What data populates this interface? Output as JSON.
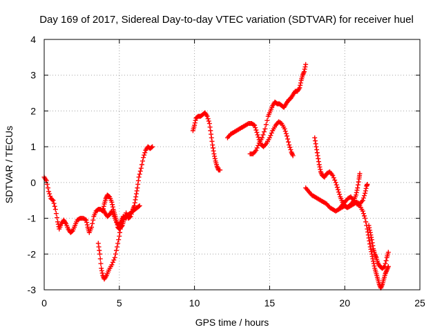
{
  "chart_data": {
    "type": "scatter",
    "title": "Day 169 of 2017, Sidereal Day-to-day VTEC variation (SDTVAR) for receiver huel",
    "xlabel": "GPS time / hours",
    "ylabel": "SDTVAR / TECUs",
    "xlim": [
      0,
      25
    ],
    "ylim": [
      -3,
      4
    ],
    "xticks": [
      "0",
      "5",
      "10",
      "15",
      "20",
      "25"
    ],
    "yticks": [
      "-3",
      "-2",
      "-1",
      "0",
      "1",
      "2",
      "3",
      "4"
    ],
    "grid": true,
    "legend": "none",
    "marker": "plus",
    "color": "#ff0000",
    "series": [
      {
        "values": [
          [
            0.0,
            0.15
          ],
          [
            0.15,
            0.05
          ],
          [
            0.3,
            -0.25
          ],
          [
            0.45,
            -0.45
          ],
          [
            0.6,
            -0.5
          ],
          [
            0.75,
            -0.75
          ],
          [
            0.9,
            -1.1
          ],
          [
            1.0,
            -1.3
          ],
          [
            1.15,
            -1.15
          ],
          [
            1.3,
            -1.05
          ],
          [
            1.45,
            -1.15
          ],
          [
            1.6,
            -1.3
          ],
          [
            1.75,
            -1.4
          ],
          [
            1.9,
            -1.35
          ],
          [
            2.05,
            -1.2
          ],
          [
            2.2,
            -1.05
          ],
          [
            2.4,
            -1.0
          ],
          [
            2.6,
            -1.0
          ],
          [
            2.8,
            -1.05
          ],
          [
            2.9,
            -1.25
          ],
          [
            3.0,
            -1.4
          ],
          [
            3.15,
            -1.25
          ],
          [
            3.3,
            -0.95
          ],
          [
            3.45,
            -0.8
          ],
          [
            3.6,
            -0.75
          ],
          [
            3.75,
            -0.75
          ],
          [
            3.9,
            -0.8
          ],
          [
            4.0,
            -0.6
          ],
          [
            4.1,
            -0.45
          ],
          [
            4.2,
            -0.35
          ],
          [
            4.35,
            -0.4
          ],
          [
            4.5,
            -0.55
          ],
          [
            4.6,
            -0.75
          ],
          [
            4.7,
            -0.9
          ],
          [
            4.8,
            -1.05
          ],
          [
            4.9,
            -1.25
          ],
          [
            5.0,
            -1.3
          ],
          [
            5.1,
            -1.25
          ],
          [
            5.2,
            -1.2
          ],
          [
            5.3,
            -1.05
          ],
          [
            5.45,
            -0.85
          ],
          [
            5.6,
            -1.0
          ],
          [
            5.75,
            -0.95
          ],
          [
            5.9,
            -0.75
          ],
          [
            6.0,
            -0.65
          ],
          [
            6.1,
            -0.4
          ],
          [
            6.2,
            -0.15
          ],
          [
            6.3,
            0.15
          ],
          [
            6.45,
            0.4
          ],
          [
            6.6,
            0.7
          ],
          [
            6.75,
            0.9
          ],
          [
            6.9,
            1.0
          ],
          [
            7.05,
            0.95
          ],
          [
            7.2,
            1.0
          ]
        ]
      },
      {
        "values": [
          [
            3.6,
            -1.7
          ],
          [
            3.7,
            -2.0
          ],
          [
            3.8,
            -2.4
          ],
          [
            3.9,
            -2.6
          ],
          [
            4.0,
            -2.7
          ],
          [
            4.15,
            -2.6
          ],
          [
            4.3,
            -2.45
          ],
          [
            4.5,
            -2.3
          ],
          [
            4.7,
            -2.1
          ],
          [
            4.85,
            -1.8
          ],
          [
            5.0,
            -1.5
          ],
          [
            5.1,
            -1.2
          ],
          [
            5.2,
            -1.05
          ],
          [
            5.3,
            -0.95
          ],
          [
            5.45,
            -1.0
          ],
          [
            5.6,
            -0.9
          ],
          [
            5.75,
            -0.85
          ],
          [
            5.9,
            -0.8
          ],
          [
            6.05,
            -0.75
          ],
          [
            6.2,
            -0.7
          ],
          [
            6.35,
            -0.65
          ]
        ]
      },
      {
        "values": [
          [
            3.9,
            -0.75
          ],
          [
            4.05,
            -0.85
          ],
          [
            4.2,
            -0.95
          ],
          [
            4.35,
            -0.9
          ],
          [
            4.5,
            -0.8
          ],
          [
            4.65,
            -0.95
          ],
          [
            4.8,
            -1.1
          ],
          [
            4.95,
            -1.2
          ],
          [
            5.1,
            -1.1
          ],
          [
            5.25,
            -0.95
          ]
        ]
      },
      {
        "values": [
          [
            9.9,
            1.45
          ],
          [
            10.0,
            1.6
          ],
          [
            10.1,
            1.8
          ],
          [
            10.25,
            1.85
          ],
          [
            10.4,
            1.85
          ],
          [
            10.55,
            1.9
          ],
          [
            10.7,
            1.95
          ],
          [
            10.85,
            1.85
          ],
          [
            11.0,
            1.65
          ],
          [
            11.1,
            1.35
          ],
          [
            11.2,
            1.05
          ],
          [
            11.3,
            0.8
          ],
          [
            11.4,
            0.6
          ],
          [
            11.5,
            0.45
          ],
          [
            11.6,
            0.35
          ],
          [
            11.7,
            0.35
          ]
        ]
      },
      {
        "values": [
          [
            12.2,
            1.25
          ],
          [
            12.4,
            1.35
          ],
          [
            12.6,
            1.4
          ],
          [
            12.8,
            1.45
          ],
          [
            13.0,
            1.5
          ],
          [
            13.2,
            1.55
          ],
          [
            13.4,
            1.6
          ],
          [
            13.6,
            1.65
          ],
          [
            13.8,
            1.65
          ],
          [
            14.0,
            1.6
          ],
          [
            14.15,
            1.4
          ],
          [
            14.3,
            1.2
          ],
          [
            14.45,
            1.05
          ],
          [
            14.6,
            1.0
          ],
          [
            14.8,
            1.1
          ],
          [
            15.0,
            1.25
          ],
          [
            15.2,
            1.45
          ],
          [
            15.4,
            1.6
          ],
          [
            15.6,
            1.7
          ],
          [
            15.8,
            1.65
          ],
          [
            16.0,
            1.5
          ],
          [
            16.15,
            1.3
          ],
          [
            16.3,
            1.05
          ],
          [
            16.45,
            0.85
          ],
          [
            16.55,
            0.75
          ]
        ]
      },
      {
        "values": [
          [
            13.7,
            0.8
          ],
          [
            13.9,
            0.8
          ],
          [
            14.1,
            0.9
          ],
          [
            14.3,
            1.1
          ],
          [
            14.5,
            1.25
          ],
          [
            14.7,
            1.5
          ],
          [
            14.9,
            1.85
          ],
          [
            15.05,
            2.0
          ],
          [
            15.2,
            2.15
          ],
          [
            15.35,
            2.25
          ],
          [
            15.5,
            2.2
          ],
          [
            15.65,
            2.2
          ],
          [
            15.8,
            2.15
          ],
          [
            15.95,
            2.1
          ],
          [
            16.1,
            2.2
          ],
          [
            16.25,
            2.3
          ],
          [
            16.4,
            2.35
          ],
          [
            16.55,
            2.45
          ],
          [
            16.7,
            2.55
          ],
          [
            16.85,
            2.55
          ],
          [
            17.0,
            2.65
          ],
          [
            17.1,
            2.85
          ],
          [
            17.2,
            3.0
          ],
          [
            17.3,
            3.1
          ],
          [
            17.4,
            3.3
          ]
        ]
      },
      {
        "values": [
          [
            18.0,
            1.25
          ],
          [
            18.1,
            1.0
          ],
          [
            18.2,
            0.75
          ],
          [
            18.3,
            0.5
          ],
          [
            18.4,
            0.3
          ],
          [
            18.5,
            0.2
          ],
          [
            18.65,
            0.15
          ],
          [
            18.8,
            0.25
          ],
          [
            19.0,
            0.3
          ],
          [
            19.2,
            0.2
          ],
          [
            19.4,
            0.0
          ],
          [
            19.55,
            -0.2
          ],
          [
            19.7,
            -0.4
          ],
          [
            19.85,
            -0.55
          ],
          [
            20.0,
            -0.65
          ],
          [
            20.15,
            -0.7
          ],
          [
            20.3,
            -0.65
          ],
          [
            20.45,
            -0.6
          ],
          [
            20.6,
            -0.5
          ],
          [
            20.75,
            -0.35
          ],
          [
            20.85,
            -0.15
          ],
          [
            20.95,
            0.1
          ],
          [
            21.0,
            0.25
          ]
        ]
      },
      {
        "values": [
          [
            17.4,
            -0.15
          ],
          [
            17.6,
            -0.25
          ],
          [
            17.8,
            -0.35
          ],
          [
            18.0,
            -0.4
          ],
          [
            18.2,
            -0.45
          ],
          [
            18.4,
            -0.5
          ],
          [
            18.6,
            -0.55
          ],
          [
            18.8,
            -0.6
          ],
          [
            19.0,
            -0.7
          ],
          [
            19.2,
            -0.75
          ],
          [
            19.4,
            -0.8
          ],
          [
            19.6,
            -0.75
          ],
          [
            19.8,
            -0.7
          ],
          [
            20.0,
            -0.65
          ],
          [
            20.2,
            -0.7
          ],
          [
            20.4,
            -0.65
          ],
          [
            20.6,
            -0.6
          ],
          [
            20.8,
            -0.55
          ],
          [
            21.0,
            -0.6
          ],
          [
            21.2,
            -0.5
          ],
          [
            21.35,
            -0.3
          ],
          [
            21.45,
            -0.1
          ],
          [
            21.5,
            -0.05
          ]
        ]
      },
      {
        "values": [
          [
            19.6,
            -0.75
          ],
          [
            19.8,
            -0.65
          ],
          [
            20.0,
            -0.55
          ],
          [
            20.2,
            -0.45
          ],
          [
            20.4,
            -0.4
          ],
          [
            20.6,
            -0.5
          ],
          [
            20.8,
            -0.6
          ],
          [
            21.0,
            -0.65
          ],
          [
            21.2,
            -0.8
          ],
          [
            21.35,
            -1.0
          ],
          [
            21.5,
            -1.3
          ],
          [
            21.6,
            -1.55
          ],
          [
            21.7,
            -1.8
          ],
          [
            21.8,
            -2.0
          ],
          [
            21.9,
            -2.2
          ],
          [
            22.0,
            -2.4
          ],
          [
            22.1,
            -2.55
          ],
          [
            22.2,
            -2.7
          ],
          [
            22.3,
            -2.85
          ],
          [
            22.4,
            -2.95
          ],
          [
            22.5,
            -2.85
          ],
          [
            22.6,
            -2.7
          ],
          [
            22.7,
            -2.55
          ],
          [
            22.8,
            -2.45
          ],
          [
            22.9,
            -2.35
          ]
        ]
      },
      {
        "values": [
          [
            21.6,
            -1.2
          ],
          [
            21.7,
            -1.4
          ],
          [
            21.8,
            -1.6
          ],
          [
            21.9,
            -1.85
          ],
          [
            22.0,
            -2.0
          ],
          [
            22.1,
            -2.1
          ],
          [
            22.2,
            -2.25
          ],
          [
            22.35,
            -2.35
          ],
          [
            22.5,
            -2.4
          ],
          [
            22.65,
            -2.35
          ],
          [
            22.8,
            -2.1
          ],
          [
            22.9,
            -1.95
          ]
        ]
      }
    ]
  }
}
